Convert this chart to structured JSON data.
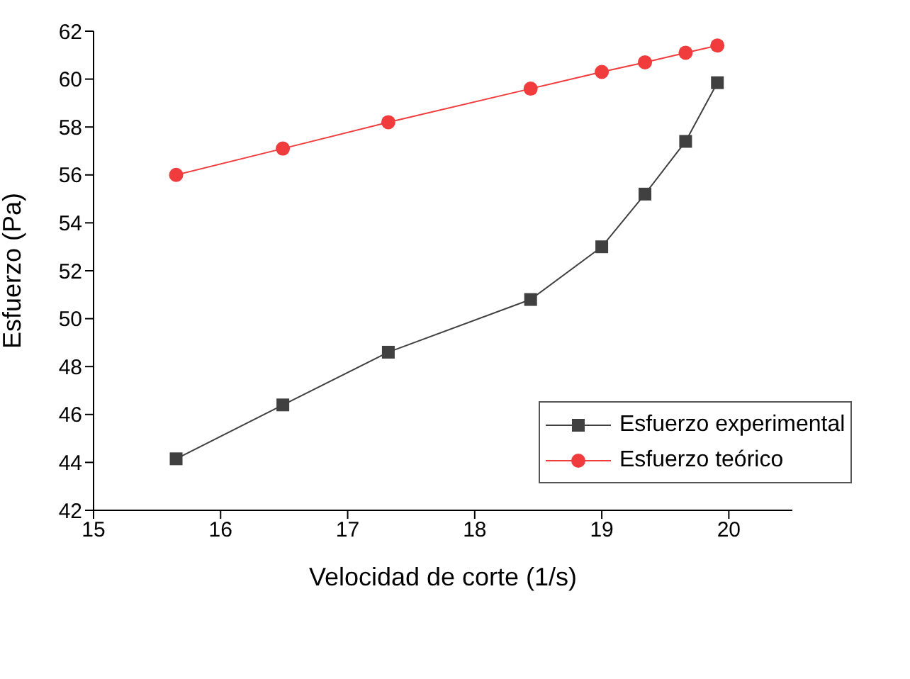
{
  "chart_data": {
    "type": "line",
    "xlabel": "Velocidad de corte (1/s)",
    "ylabel": "Esfuerzo (Pa)",
    "xlim": [
      15,
      20.5
    ],
    "xticks": [
      15,
      16,
      17,
      18,
      19,
      20
    ],
    "ylim": [
      42,
      62
    ],
    "yticks": [
      42,
      44,
      46,
      48,
      50,
      52,
      54,
      56,
      58,
      60,
      62
    ],
    "grid": false,
    "legend": "right",
    "series": [
      {
        "name": "Esfuerzo experimental",
        "color": "#404040",
        "marker": "square",
        "x": [
          15.65,
          16.49,
          17.32,
          18.44,
          19.0,
          19.34,
          19.66,
          19.91
        ],
        "values": [
          44.15,
          46.4,
          48.6,
          50.8,
          53.0,
          55.2,
          57.4,
          59.85
        ]
      },
      {
        "name": "Esfuerzo teórico",
        "color": "#f03c3c",
        "marker": "circle",
        "x": [
          15.65,
          16.49,
          17.32,
          18.44,
          19.0,
          19.34,
          19.66,
          19.91
        ],
        "values": [
          56.0,
          57.1,
          58.2,
          59.6,
          60.3,
          60.7,
          61.1,
          61.4
        ]
      }
    ]
  }
}
